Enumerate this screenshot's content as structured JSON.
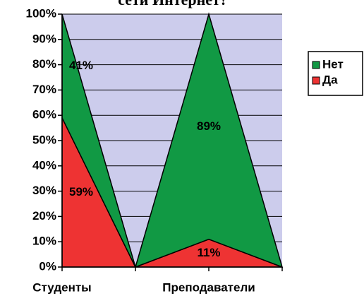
{
  "chart_data": {
    "type": "stacked_area_percent",
    "title": "сети Интернет?",
    "categories": [
      "Студенты",
      null,
      "Преподаватели",
      null
    ],
    "series": [
      {
        "name": "Да",
        "color": "#ee3333",
        "values": [
          59,
          0,
          11,
          0
        ],
        "value_labels": [
          "59%",
          null,
          "11%",
          null
        ]
      },
      {
        "name": "Нет",
        "color": "#119944",
        "values": [
          41,
          0,
          89,
          0
        ],
        "value_labels": [
          "41%",
          null,
          "89%",
          null
        ]
      }
    ],
    "ylim": [
      0,
      100
    ],
    "yticks": [
      {
        "value": 0,
        "label": "0%"
      },
      {
        "value": 10,
        "label": "10%"
      },
      {
        "value": 20,
        "label": "20%"
      },
      {
        "value": 30,
        "label": "30%"
      },
      {
        "value": 40,
        "label": "40%"
      },
      {
        "value": 50,
        "label": "50%"
      },
      {
        "value": 60,
        "label": "60%"
      },
      {
        "value": 70,
        "label": "70%"
      },
      {
        "value": 80,
        "label": "80%"
      },
      {
        "value": 90,
        "label": "90%"
      },
      {
        "value": 100,
        "label": "100%"
      }
    ],
    "grid": true,
    "legend": "right"
  }
}
